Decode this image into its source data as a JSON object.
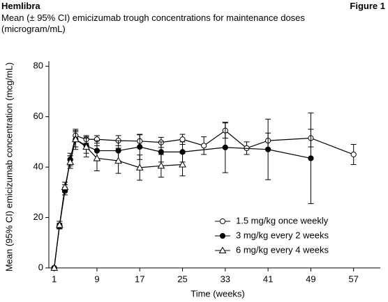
{
  "header": {
    "brand": "Hemlibra",
    "figure": "Figure 1"
  },
  "chart_data": {
    "type": "line",
    "title": "Mean (± 95% CI) emicizumab trough concentrations for maintenance doses (microgram/mL)",
    "x_label": "Time (weeks)",
    "y_label": "Mean (95% CI) emicizumab concentration (mcg/mL)",
    "xlim": [
      0,
      62
    ],
    "xticks": [
      1,
      9,
      17,
      25,
      33,
      41,
      49,
      57
    ],
    "ylim": [
      0,
      82
    ],
    "yticks": [
      0,
      20,
      40,
      60,
      80
    ],
    "grid": false,
    "legend": "lower right",
    "series": [
      {
        "name": "1.5 mg/kg once weekly",
        "color": "#000000",
        "marker": "open-circle",
        "x": [
          1,
          2,
          3,
          4,
          5,
          7,
          9,
          13,
          17,
          21,
          25,
          29,
          33,
          37,
          41,
          49,
          57
        ],
        "values": [
          0,
          16.7,
          30.5,
          43,
          52.5,
          51,
          51,
          50.5,
          50.3,
          49.8,
          51,
          48.5,
          54.5,
          47.5,
          50.5,
          51.5,
          45
        ],
        "errors": [
          0,
          1,
          1.5,
          1.5,
          2,
          1.5,
          1.5,
          2,
          2.5,
          2,
          2,
          3.5,
          3,
          2.5,
          3,
          3.5,
          4
        ]
      },
      {
        "name": "3 mg/kg every 2 weeks",
        "color": "#000000",
        "marker": "filled-circle",
        "x": [
          1,
          2,
          3,
          4,
          5,
          7,
          9,
          13,
          17,
          21,
          25,
          33,
          41,
          49
        ],
        "values": [
          0,
          17,
          31,
          43,
          51,
          48.5,
          46.5,
          46.5,
          48,
          46,
          46,
          47.8,
          47,
          43.5
        ],
        "errors": [
          0,
          1.5,
          2,
          2.5,
          3,
          3,
          4,
          4,
          5,
          4,
          4,
          10,
          12,
          18
        ]
      },
      {
        "name": "6 mg/kg every 4 weeks",
        "color": "#000000",
        "marker": "open-triangle",
        "x": [
          1,
          2,
          3,
          4,
          5,
          7,
          9,
          13,
          17,
          21,
          25
        ],
        "values": [
          0,
          17,
          32,
          42,
          51,
          48,
          43.5,
          42.5,
          39.8,
          40.5,
          41
        ],
        "errors": [
          0,
          1.5,
          2,
          2.5,
          4,
          4,
          5,
          5,
          5,
          4.5,
          4.5
        ]
      }
    ]
  }
}
